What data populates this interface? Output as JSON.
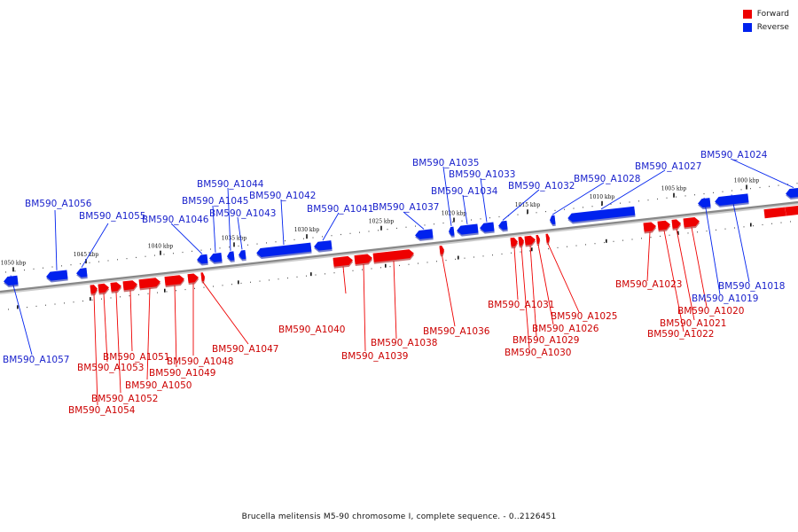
{
  "caption": "Brucella melitensis M5-90 chromosome I, complete sequence. - 0..2126451",
  "legend": [
    {
      "label": "Forward",
      "color": "#ee0000"
    },
    {
      "label": "Reverse",
      "color": "#0022ee"
    }
  ],
  "colors": {
    "forward": "#ee0000",
    "reverse": "#0022ee",
    "backbone": "#888888"
  },
  "ticks": [
    {
      "label": "1050 kbp"
    },
    {
      "label": "1045 kbp"
    },
    {
      "label": "1040 kbp"
    },
    {
      "label": "1035 kbp"
    },
    {
      "label": "1030 kbp"
    },
    {
      "label": "1025 kbp"
    },
    {
      "label": "1020 kbp"
    },
    {
      "label": "1015 kbp"
    },
    {
      "label": "1010 kbp"
    },
    {
      "label": "1005 kbp"
    },
    {
      "label": "1000 kbp"
    }
  ],
  "genes": [
    {
      "name": "BM590_A1057",
      "strand": "reverse"
    },
    {
      "name": "BM590_A1056",
      "strand": "reverse"
    },
    {
      "name": "BM590_A1055",
      "strand": "reverse"
    },
    {
      "name": "BM590_A1054",
      "strand": "forward"
    },
    {
      "name": "BM590_A1053",
      "strand": "forward"
    },
    {
      "name": "BM590_A1052",
      "strand": "forward"
    },
    {
      "name": "BM590_A1051",
      "strand": "forward"
    },
    {
      "name": "BM590_A1050",
      "strand": "forward"
    },
    {
      "name": "BM590_A1049",
      "strand": "forward"
    },
    {
      "name": "BM590_A1048",
      "strand": "forward"
    },
    {
      "name": "BM590_A1047",
      "strand": "forward"
    },
    {
      "name": "BM590_A1046",
      "strand": "reverse"
    },
    {
      "name": "BM590_A1045",
      "strand": "reverse"
    },
    {
      "name": "BM590_A1044",
      "strand": "reverse"
    },
    {
      "name": "BM590_A1043",
      "strand": "reverse"
    },
    {
      "name": "BM590_A1042",
      "strand": "reverse"
    },
    {
      "name": "BM590_A1041",
      "strand": "reverse"
    },
    {
      "name": "BM590_A1040",
      "strand": "forward"
    },
    {
      "name": "BM590_A1039",
      "strand": "forward"
    },
    {
      "name": "BM590_A1038",
      "strand": "forward"
    },
    {
      "name": "BM590_A1037",
      "strand": "reverse"
    },
    {
      "name": "BM590_A1036",
      "strand": "forward"
    },
    {
      "name": "BM590_A1035",
      "strand": "reverse"
    },
    {
      "name": "BM590_A1034",
      "strand": "reverse"
    },
    {
      "name": "BM590_A1033",
      "strand": "reverse"
    },
    {
      "name": "BM590_A1032",
      "strand": "reverse"
    },
    {
      "name": "BM590_A1031",
      "strand": "forward"
    },
    {
      "name": "BM590_A1030",
      "strand": "forward"
    },
    {
      "name": "BM590_A1029",
      "strand": "forward"
    },
    {
      "name": "BM590_A1026",
      "strand": "forward"
    },
    {
      "name": "BM590_A1025",
      "strand": "forward"
    },
    {
      "name": "BM590_A1028",
      "strand": "reverse"
    },
    {
      "name": "BM590_A1027",
      "strand": "reverse"
    },
    {
      "name": "BM590_A1023",
      "strand": "forward"
    },
    {
      "name": "BM590_A1022",
      "strand": "forward"
    },
    {
      "name": "BM590_A1021",
      "strand": "forward"
    },
    {
      "name": "BM590_A1020",
      "strand": "forward"
    },
    {
      "name": "BM590_A1019",
      "strand": "reverse"
    },
    {
      "name": "BM590_A1018",
      "strand": "reverse"
    },
    {
      "name": "BM590_A1024",
      "strand": "reverse"
    }
  ]
}
